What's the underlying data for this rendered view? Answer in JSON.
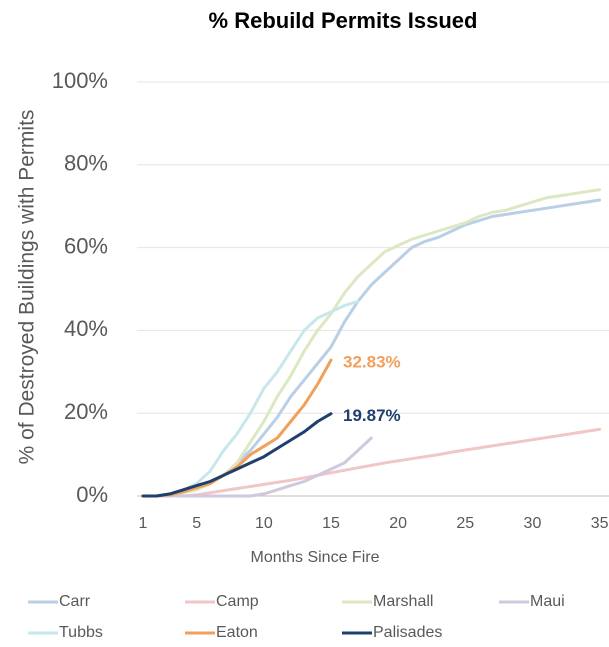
{
  "chart_data": {
    "type": "line",
    "title": "% Rebuild Permits Issued",
    "x_label": "Months Since Fire",
    "y_label": "% of Destroyed Buildings with Permits",
    "x": [
      1,
      2,
      3,
      4,
      5,
      6,
      7,
      8,
      9,
      10,
      11,
      12,
      13,
      14,
      15,
      16,
      17,
      18,
      19,
      20,
      21,
      22,
      23,
      24,
      25,
      26,
      27,
      28,
      29,
      30,
      31,
      32,
      33,
      34,
      35
    ],
    "xlim": [
      1,
      35.7
    ],
    "xticks": [
      1,
      5,
      10,
      15,
      20,
      25,
      30,
      35
    ],
    "ylim": [
      0,
      100
    ],
    "yticks": [
      {
        "value": 0,
        "label": "0%"
      },
      {
        "value": 20,
        "label": "20%"
      },
      {
        "value": 40,
        "label": "40%"
      },
      {
        "value": 60,
        "label": "60%"
      },
      {
        "value": 80,
        "label": "80%"
      },
      {
        "value": 100,
        "label": "100%"
      }
    ],
    "grid": true,
    "series": [
      {
        "name": "Carr",
        "color": "#b9cfe5",
        "values": [
          0,
          0,
          0.3,
          1,
          2,
          3,
          5,
          8,
          11,
          15,
          19,
          24,
          28,
          32,
          36,
          42,
          47,
          51,
          54,
          57,
          60,
          61.5,
          62.5,
          64,
          65.5,
          66.5,
          67.5,
          68,
          68.5,
          69,
          69.5,
          70,
          70.5,
          71,
          71.5
        ]
      },
      {
        "name": "Camp",
        "color": "#f0c6c6",
        "values": [
          0,
          0,
          0,
          0,
          0.3,
          0.8,
          1.3,
          1.8,
          2.3,
          2.8,
          3.3,
          3.8,
          4.4,
          5,
          5.6,
          6.2,
          6.8,
          7.4,
          8,
          8.5,
          9,
          9.5,
          10,
          10.6,
          11.1,
          11.6,
          12.1,
          12.6,
          13.1,
          13.6,
          14.1,
          14.6,
          15.1,
          15.6,
          16.1
        ]
      },
      {
        "name": "Marshall",
        "color": "#dce8c2",
        "values": [
          0,
          0,
          0.2,
          0.8,
          1.5,
          3,
          5,
          8,
          13,
          18,
          24,
          29,
          35,
          40,
          44,
          49,
          53,
          56,
          59,
          60.5,
          62,
          63,
          64,
          65,
          66,
          67.5,
          68.5,
          69,
          70,
          71,
          72,
          72.5,
          73,
          73.5,
          74
        ]
      },
      {
        "name": "Maui",
        "color": "#d0c8dd",
        "values": [
          0,
          0,
          0,
          0,
          0,
          0,
          0,
          0,
          0,
          0.5,
          1.5,
          2.5,
          3.5,
          5,
          6.5,
          8,
          11,
          14,
          null,
          null,
          null,
          null,
          null,
          null,
          null,
          null,
          null,
          null,
          null,
          null,
          null,
          null,
          null,
          null,
          null
        ]
      },
      {
        "name": "Tubbs",
        "color": "#c6e7eb",
        "values": [
          0,
          0,
          0.5,
          1.5,
          3,
          6,
          11,
          15,
          20,
          26,
          30,
          35,
          40,
          43,
          44.5,
          46,
          47,
          null,
          null,
          null,
          null,
          null,
          null,
          null,
          null,
          null,
          null,
          null,
          null,
          null,
          null,
          null,
          null,
          null,
          null
        ]
      },
      {
        "name": "Eaton",
        "color": "#f0a05a",
        "values": [
          0,
          0,
          0.3,
          1,
          2,
          3,
          5,
          7,
          10,
          12,
          14,
          18,
          22,
          27,
          32.83,
          null,
          null,
          null,
          null,
          null,
          null,
          null,
          null,
          null,
          null,
          null,
          null,
          null,
          null,
          null,
          null,
          null,
          null,
          null,
          null
        ],
        "value_labels": [
          null,
          null,
          null,
          null,
          null,
          null,
          null,
          null,
          null,
          null,
          null,
          null,
          null,
          null,
          "32.83%",
          null,
          null,
          null,
          null,
          null,
          null,
          null,
          null,
          null,
          null,
          null,
          null,
          null,
          null,
          null,
          null,
          null,
          null,
          null,
          null
        ]
      },
      {
        "name": "Palisades",
        "color": "#1f3f6e",
        "values": [
          0,
          0,
          0.5,
          1.5,
          2.5,
          3.5,
          5,
          6.5,
          8,
          9.5,
          11.5,
          13.5,
          15.5,
          18,
          19.87,
          null,
          null,
          null,
          null,
          null,
          null,
          null,
          null,
          null,
          null,
          null,
          null,
          null,
          null,
          null,
          null,
          null,
          null,
          null,
          null
        ],
        "value_labels": [
          null,
          null,
          null,
          null,
          null,
          null,
          null,
          null,
          null,
          null,
          null,
          null,
          null,
          null,
          "19.87%",
          null,
          null,
          null,
          null,
          null,
          null,
          null,
          null,
          null,
          null,
          null,
          null,
          null,
          null,
          null,
          null,
          null,
          null,
          null,
          null
        ]
      }
    ]
  }
}
